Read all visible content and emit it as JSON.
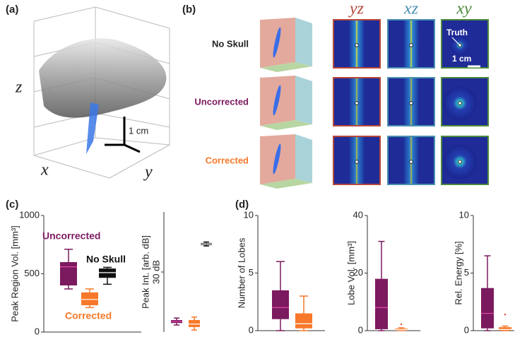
{
  "figure": {
    "panel_a": {
      "label": "(a)",
      "axis_labels": [
        "z",
        "x",
        "y"
      ],
      "scale_bar": "1 cm"
    },
    "panel_b": {
      "label": "(b)",
      "columns": [
        "yz",
        "xz",
        "xy"
      ],
      "rows": [
        "No Skull",
        "Uncorrected",
        "Corrected"
      ],
      "annotation": "Truth",
      "scale_bar": "1 cm"
    },
    "panel_c": {
      "label": "(c)"
    },
    "panel_d": {
      "label": "(d)"
    }
  },
  "chart_data": [
    {
      "type": "box",
      "ylabel": "Peak Region Vol. [mm³]",
      "ylim": [
        0,
        1000
      ],
      "yticks": [
        0,
        500,
        1000
      ],
      "series": [
        {
          "name": "Uncorrected",
          "color": "#7b1a5e",
          "whislo": 370,
          "q1": 400,
          "median": 560,
          "q3": 600,
          "whishi": 710
        },
        {
          "name": "Corrected",
          "color": "#f7782a",
          "whislo": 210,
          "q1": 230,
          "median": 280,
          "q3": 340,
          "whishi": 370
        },
        {
          "name": "No Skull",
          "color": "#111111",
          "whislo": 410,
          "q1": 465,
          "median": 510,
          "q3": 545,
          "whishi": 555
        }
      ]
    },
    {
      "type": "box",
      "ylabel": "Peak Int. [arb. dB]",
      "ylim": [
        0,
        60
      ],
      "yticks": [
        {
          "value": 30,
          "label": "30 dB"
        }
      ],
      "series": [
        {
          "color": "#7b1a5e",
          "whislo": 3.5,
          "q1": 4.5,
          "median": 5.3,
          "q3": 6,
          "whishi": 7
        },
        {
          "color": "#f7782a",
          "whislo": 1,
          "q1": 2.5,
          "median": 4,
          "q3": 6,
          "whishi": 7.5
        },
        {
          "color": "#111111",
          "whislo": 43,
          "q1": 43.5,
          "median": 44,
          "q3": 44.5,
          "whishi": 45
        }
      ]
    },
    {
      "type": "box",
      "ylabel": "Number of Lobes",
      "ylim": [
        0,
        10
      ],
      "yticks": [
        0,
        5,
        10
      ],
      "series": [
        {
          "color": "#7b1a5e",
          "whislo": 0,
          "q1": 1,
          "median": 2,
          "q3": 3.5,
          "whishi": 6
        },
        {
          "color": "#f7782a",
          "whislo": 0,
          "q1": 0.2,
          "median": 0.6,
          "q3": 1.5,
          "whishi": 3
        }
      ]
    },
    {
      "type": "box",
      "ylabel": "Lobe Vol. [mm³]",
      "ylim": [
        0,
        40
      ],
      "yticks": [
        0,
        20,
        40
      ],
      "series": [
        {
          "color": "#7b1a5e",
          "whislo": 0,
          "q1": 0.5,
          "median": 8,
          "q3": 18,
          "whishi": 31
        },
        {
          "color": "#f7782a",
          "whislo": 0,
          "q1": 0,
          "median": 0.3,
          "q3": 0.7,
          "whishi": 1,
          "outliers": [
            2.2
          ]
        }
      ]
    },
    {
      "type": "box",
      "ylabel": "Rel. Energy [%]",
      "ylim": [
        0,
        10
      ],
      "yticks": [
        0,
        5,
        10
      ],
      "series": [
        {
          "color": "#7b1a5e",
          "whislo": 0,
          "q1": 0.2,
          "median": 1.5,
          "q3": 3.7,
          "whishi": 6.5
        },
        {
          "color": "#f7782a",
          "whislo": 0,
          "q1": 0,
          "median": 0.1,
          "q3": 0.3,
          "whishi": 0.4,
          "outliers": [
            1.4
          ]
        }
      ]
    }
  ]
}
